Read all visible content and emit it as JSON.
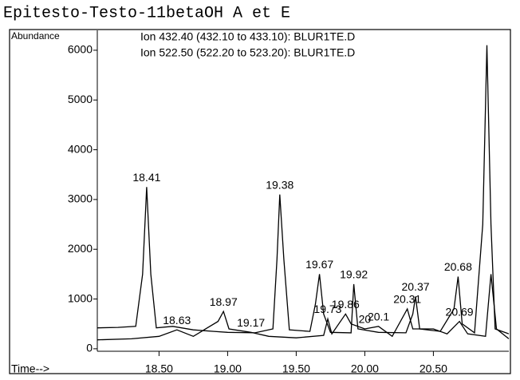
{
  "chart_data": {
    "type": "line",
    "title": "Epitesto-Testo-11betaOH A et E",
    "ylabel": "Abundance",
    "xlabel": "Time-->",
    "series": [
      {
        "name": "Ion 432.40 (432.10 to 433.10): BLUR1TE.D",
        "color": "#000000",
        "x": [
          18.05,
          18.2,
          18.33,
          18.38,
          18.41,
          18.44,
          18.48,
          18.6,
          18.75,
          18.9,
          19.0,
          19.2,
          19.33,
          19.36,
          19.38,
          19.41,
          19.45,
          19.6,
          19.64,
          19.67,
          19.7,
          19.75,
          19.9,
          19.92,
          19.95,
          20.1,
          20.3,
          20.35,
          20.37,
          20.4,
          20.55,
          20.65,
          20.68,
          20.71,
          20.8,
          20.86,
          20.89,
          20.92,
          20.95,
          21.05
        ],
        "values": [
          420,
          430,
          450,
          1500,
          3250,
          1500,
          420,
          450,
          380,
          350,
          330,
          320,
          400,
          1800,
          3100,
          1800,
          380,
          350,
          900,
          1500,
          700,
          330,
          320,
          1300,
          400,
          330,
          320,
          700,
          1050,
          400,
          350,
          800,
          1450,
          500,
          320,
          2500,
          6100,
          2500,
          400,
          300
        ]
      },
      {
        "name": "Ion 522.50 (522.20 to 523.20): BLUR1TE.D",
        "color": "#000000",
        "x": [
          18.05,
          18.3,
          18.5,
          18.63,
          18.75,
          18.93,
          18.97,
          19.01,
          19.17,
          19.3,
          19.5,
          19.7,
          19.73,
          19.76,
          19.86,
          19.9,
          20.0,
          20.1,
          20.2,
          20.31,
          20.35,
          20.5,
          20.6,
          20.69,
          20.75,
          20.88,
          20.92,
          20.96,
          21.05
        ],
        "values": [
          180,
          200,
          250,
          380,
          250,
          550,
          750,
          400,
          330,
          250,
          220,
          270,
          600,
          300,
          700,
          500,
          400,
          450,
          250,
          800,
          400,
          400,
          300,
          550,
          300,
          250,
          1500,
          400,
          200
        ]
      }
    ],
    "peaks": [
      {
        "time": 18.41,
        "abundance": 3250
      },
      {
        "time": 18.63,
        "abundance": 380
      },
      {
        "time": 18.97,
        "abundance": 750
      },
      {
        "time": 19.17,
        "abundance": 330
      },
      {
        "time": 19.38,
        "abundance": 3100
      },
      {
        "time": 19.67,
        "abundance": 1500
      },
      {
        "time": 19.92,
        "abundance": 1300
      },
      {
        "time": 19.86,
        "abundance": 700
      },
      {
        "time": 19.73,
        "abundance": 600
      },
      {
        "time": 20.0,
        "abundance": 400
      },
      {
        "time": 20.1,
        "abundance": 450
      },
      {
        "time": 20.31,
        "abundance": 800
      },
      {
        "time": 20.37,
        "abundance": 1050
      },
      {
        "time": 20.68,
        "abundance": 1450
      },
      {
        "time": 20.69,
        "abundance": 550
      }
    ],
    "xlim": [
      18.05,
      21.05
    ],
    "ylim": [
      -50,
      6400
    ],
    "xticks": [
      {
        "value": 18.5,
        "label": "18.50"
      },
      {
        "value": 19.0,
        "label": "19.00"
      },
      {
        "value": 19.5,
        "label": "19.50"
      },
      {
        "value": 20.0,
        "label": "20.00"
      },
      {
        "value": 20.5,
        "label": "20.50"
      }
    ],
    "yticks": [
      0,
      1000,
      2000,
      3000,
      4000,
      5000,
      6000
    ]
  }
}
